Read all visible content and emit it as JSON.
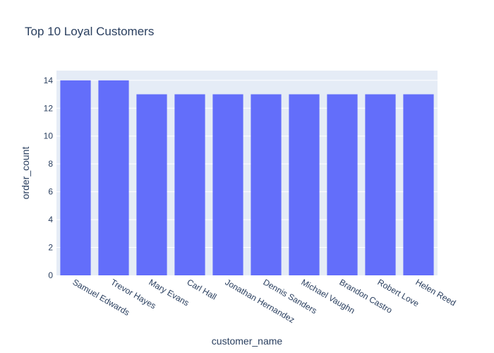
{
  "chart_data": {
    "type": "bar",
    "title": "Top 10 Loyal Customers",
    "xlabel": "customer_name",
    "ylabel": "order_count",
    "categories": [
      "Samuel Edwards",
      "Trevor Hayes",
      "Mary Evans",
      "Carl Hall",
      "Jonathan Hernandez",
      "Dennis Sanders",
      "Michael Vaughn",
      "Brandon Castro",
      "Robert Love",
      "Helen Reed"
    ],
    "values": [
      14,
      14,
      13,
      13,
      13,
      13,
      13,
      13,
      13,
      13
    ],
    "ylim": [
      0,
      14.7
    ],
    "yticks": [
      0,
      2,
      4,
      6,
      8,
      10,
      12,
      14
    ],
    "grid": true,
    "legend": "none"
  },
  "colors": {
    "bar": "#636efa",
    "plot_background": "#e5ecf6",
    "gridline": "#ffffff",
    "text": "#2a3f5f"
  }
}
